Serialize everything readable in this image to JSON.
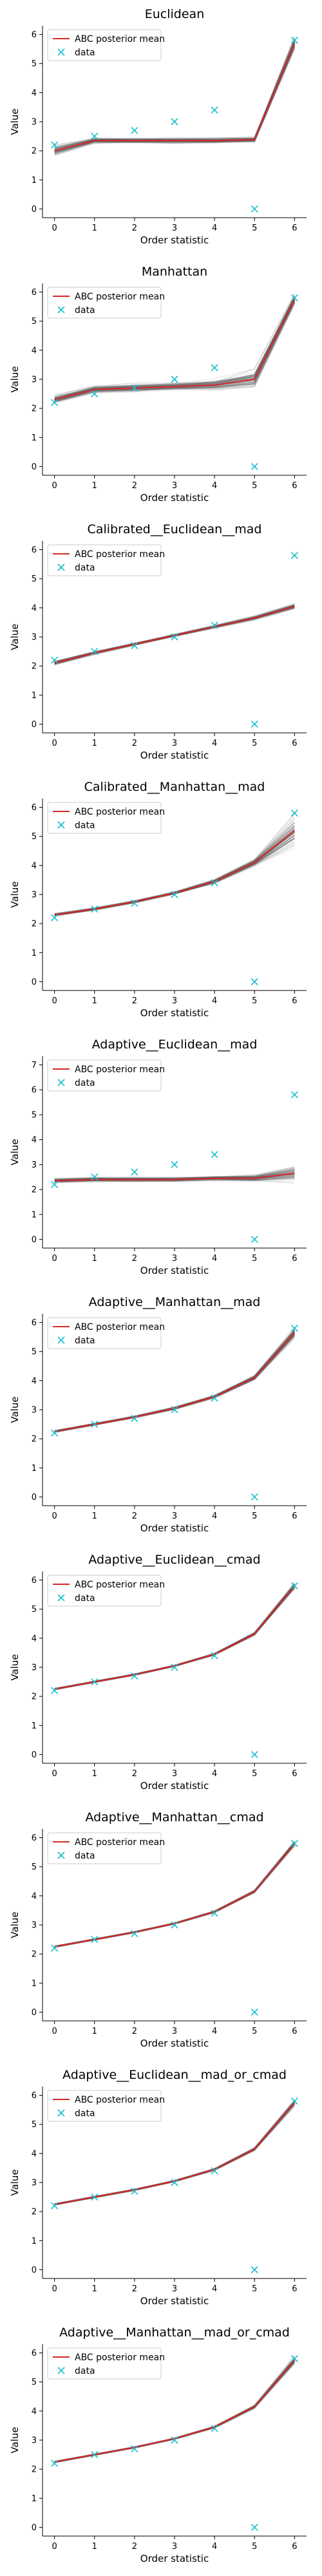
{
  "colors": {
    "mean_line": "#d62728",
    "sim_lines": "#808080",
    "data_marker": "#17becf",
    "axis": "#000000"
  },
  "legend": {
    "mean_label": "ABC posterior mean",
    "data_label": "data"
  },
  "chart_data": [
    {
      "type": "line",
      "title": "Euclidean",
      "xlabel": "Order statistic",
      "ylabel": "Value",
      "xlim": [
        0,
        6
      ],
      "ylim": [
        0,
        6
      ],
      "xticks": [
        0,
        1,
        2,
        3,
        4,
        5,
        6
      ],
      "yticks": [
        0,
        1,
        2,
        3,
        4,
        5,
        6
      ],
      "legend_position": "upper-left",
      "series": [
        {
          "name": "ABC posterior mean",
          "x": [
            0,
            1,
            2,
            3,
            4,
            5,
            6
          ],
          "values": [
            2.0,
            2.35,
            2.35,
            2.35,
            2.35,
            2.38,
            5.7
          ],
          "band": [
            0.18,
            0.1,
            0.1,
            0.1,
            0.1,
            0.1,
            0.25
          ]
        },
        {
          "name": "data",
          "x": [
            0,
            1,
            2,
            3,
            4,
            5,
            6
          ],
          "values": [
            2.2,
            2.5,
            2.7,
            3.0,
            3.4,
            0.0,
            5.8
          ]
        }
      ]
    },
    {
      "type": "line",
      "title": "Manhattan",
      "xlabel": "Order statistic",
      "ylabel": "Value",
      "xlim": [
        0,
        6
      ],
      "ylim": [
        0,
        6
      ],
      "xticks": [
        0,
        1,
        2,
        3,
        4,
        5,
        6
      ],
      "yticks": [
        0,
        1,
        2,
        3,
        4,
        5,
        6
      ],
      "legend_position": "upper-left",
      "series": [
        {
          "name": "ABC posterior mean",
          "x": [
            0,
            1,
            2,
            3,
            4,
            5,
            6
          ],
          "values": [
            2.3,
            2.65,
            2.7,
            2.75,
            2.8,
            3.0,
            5.75
          ],
          "band": [
            0.15,
            0.15,
            0.15,
            0.15,
            0.2,
            0.35,
            0.2
          ]
        },
        {
          "name": "data",
          "x": [
            0,
            1,
            2,
            3,
            4,
            5,
            6
          ],
          "values": [
            2.2,
            2.5,
            2.7,
            3.0,
            3.4,
            0.0,
            5.8
          ]
        }
      ]
    },
    {
      "type": "line",
      "title": "Calibrated__Euclidean__mad",
      "xlabel": "Order statistic",
      "ylabel": "Value",
      "xlim": [
        0,
        6
      ],
      "ylim": [
        0,
        6
      ],
      "xticks": [
        0,
        1,
        2,
        3,
        4,
        5,
        6
      ],
      "yticks": [
        0,
        1,
        2,
        3,
        4,
        5,
        6
      ],
      "legend_position": "upper-left",
      "series": [
        {
          "name": "ABC posterior mean",
          "x": [
            0,
            1,
            2,
            3,
            4,
            5,
            6
          ],
          "values": [
            2.1,
            2.45,
            2.75,
            3.05,
            3.35,
            3.65,
            4.05
          ],
          "band": [
            0.08,
            0.06,
            0.05,
            0.05,
            0.06,
            0.08,
            0.1
          ]
        },
        {
          "name": "data",
          "x": [
            0,
            1,
            2,
            3,
            4,
            5,
            6
          ],
          "values": [
            2.2,
            2.5,
            2.7,
            3.0,
            3.4,
            0.0,
            5.8
          ]
        }
      ]
    },
    {
      "type": "line",
      "title": "Calibrated__Manhattan__mad",
      "xlabel": "Order statistic",
      "ylabel": "Value",
      "xlim": [
        0,
        6
      ],
      "ylim": [
        0,
        6
      ],
      "xticks": [
        0,
        1,
        2,
        3,
        4,
        5,
        6
      ],
      "yticks": [
        0,
        1,
        2,
        3,
        4,
        5,
        6
      ],
      "legend_position": "upper-left",
      "series": [
        {
          "name": "ABC posterior mean",
          "x": [
            0,
            1,
            2,
            3,
            4,
            5,
            6
          ],
          "values": [
            2.3,
            2.5,
            2.75,
            3.05,
            3.45,
            4.1,
            5.2
          ],
          "band": [
            0.05,
            0.05,
            0.05,
            0.05,
            0.08,
            0.15,
            0.6
          ]
        },
        {
          "name": "data",
          "x": [
            0,
            1,
            2,
            3,
            4,
            5,
            6
          ],
          "values": [
            2.2,
            2.5,
            2.7,
            3.0,
            3.4,
            0.0,
            5.8
          ]
        }
      ]
    },
    {
      "type": "line",
      "title": "Adaptive__Euclidean__mad",
      "xlabel": "Order statistic",
      "ylabel": "Value",
      "xlim": [
        0,
        6
      ],
      "ylim": [
        0,
        7
      ],
      "xticks": [
        0,
        1,
        2,
        3,
        4,
        5,
        6
      ],
      "yticks": [
        0,
        1,
        2,
        3,
        4,
        5,
        6,
        7
      ],
      "legend_position": "upper-left",
      "series": [
        {
          "name": "ABC posterior mean",
          "x": [
            0,
            1,
            2,
            3,
            4,
            5,
            6
          ],
          "values": [
            2.35,
            2.4,
            2.4,
            2.4,
            2.45,
            2.45,
            2.65
          ],
          "band": [
            0.1,
            0.1,
            0.1,
            0.1,
            0.1,
            0.15,
            0.35
          ]
        },
        {
          "name": "data",
          "x": [
            0,
            1,
            2,
            3,
            4,
            5,
            6
          ],
          "values": [
            2.2,
            2.5,
            2.7,
            3.0,
            3.4,
            0.0,
            5.8
          ]
        }
      ]
    },
    {
      "type": "line",
      "title": "Adaptive__Manhattan__mad",
      "xlabel": "Order statistic",
      "ylabel": "Value",
      "xlim": [
        0,
        6
      ],
      "ylim": [
        0,
        6
      ],
      "xticks": [
        0,
        1,
        2,
        3,
        4,
        5,
        6
      ],
      "yticks": [
        0,
        1,
        2,
        3,
        4,
        5,
        6
      ],
      "legend_position": "upper-left",
      "series": [
        {
          "name": "ABC posterior mean",
          "x": [
            0,
            1,
            2,
            3,
            4,
            5,
            6
          ],
          "values": [
            2.25,
            2.5,
            2.75,
            3.05,
            3.45,
            4.1,
            5.65
          ],
          "band": [
            0.04,
            0.04,
            0.04,
            0.05,
            0.06,
            0.1,
            0.2
          ]
        },
        {
          "name": "data",
          "x": [
            0,
            1,
            2,
            3,
            4,
            5,
            6
          ],
          "values": [
            2.2,
            2.5,
            2.7,
            3.0,
            3.4,
            0.0,
            5.8
          ]
        }
      ]
    },
    {
      "type": "line",
      "title": "Adaptive__Euclidean__cmad",
      "xlabel": "Order statistic",
      "ylabel": "Value",
      "xlim": [
        0,
        6
      ],
      "ylim": [
        0,
        6
      ],
      "xticks": [
        0,
        1,
        2,
        3,
        4,
        5,
        6
      ],
      "yticks": [
        0,
        1,
        2,
        3,
        4,
        5,
        6
      ],
      "legend_position": "upper-left",
      "series": [
        {
          "name": "ABC posterior mean",
          "x": [
            0,
            1,
            2,
            3,
            4,
            5,
            6
          ],
          "values": [
            2.25,
            2.5,
            2.75,
            3.05,
            3.45,
            4.15,
            5.8
          ],
          "band": [
            0.03,
            0.03,
            0.03,
            0.03,
            0.04,
            0.06,
            0.12
          ]
        },
        {
          "name": "data",
          "x": [
            0,
            1,
            2,
            3,
            4,
            5,
            6
          ],
          "values": [
            2.2,
            2.5,
            2.7,
            3.0,
            3.4,
            0.0,
            5.8
          ]
        }
      ]
    },
    {
      "type": "line",
      "title": "Adaptive__Manhattan__cmad",
      "xlabel": "Order statistic",
      "ylabel": "Value",
      "xlim": [
        0,
        6
      ],
      "ylim": [
        0,
        6
      ],
      "xticks": [
        0,
        1,
        2,
        3,
        4,
        5,
        6
      ],
      "yticks": [
        0,
        1,
        2,
        3,
        4,
        5,
        6
      ],
      "legend_position": "upper-left",
      "series": [
        {
          "name": "ABC posterior mean",
          "x": [
            0,
            1,
            2,
            3,
            4,
            5,
            6
          ],
          "values": [
            2.25,
            2.5,
            2.75,
            3.05,
            3.45,
            4.15,
            5.8
          ],
          "band": [
            0.03,
            0.03,
            0.03,
            0.03,
            0.04,
            0.06,
            0.12
          ]
        },
        {
          "name": "data",
          "x": [
            0,
            1,
            2,
            3,
            4,
            5,
            6
          ],
          "values": [
            2.2,
            2.5,
            2.7,
            3.0,
            3.4,
            0.0,
            5.8
          ]
        }
      ]
    },
    {
      "type": "line",
      "title": "Adaptive__Euclidean__mad_or_cmad",
      "xlabel": "Order statistic",
      "ylabel": "Value",
      "xlim": [
        0,
        6
      ],
      "ylim": [
        0,
        6
      ],
      "xticks": [
        0,
        1,
        2,
        3,
        4,
        5,
        6
      ],
      "yticks": [
        0,
        1,
        2,
        3,
        4,
        5,
        6
      ],
      "legend_position": "upper-left",
      "series": [
        {
          "name": "ABC posterior mean",
          "x": [
            0,
            1,
            2,
            3,
            4,
            5,
            6
          ],
          "values": [
            2.25,
            2.5,
            2.75,
            3.05,
            3.45,
            4.15,
            5.75
          ],
          "band": [
            0.03,
            0.03,
            0.03,
            0.03,
            0.04,
            0.06,
            0.12
          ]
        },
        {
          "name": "data",
          "x": [
            0,
            1,
            2,
            3,
            4,
            5,
            6
          ],
          "values": [
            2.2,
            2.5,
            2.7,
            3.0,
            3.4,
            0.0,
            5.8
          ]
        }
      ]
    },
    {
      "type": "line",
      "title": "Adaptive__Manhattan__mad_or_cmad",
      "xlabel": "Order statistic",
      "ylabel": "Value",
      "xlim": [
        0,
        6
      ],
      "ylim": [
        0,
        6
      ],
      "xticks": [
        0,
        1,
        2,
        3,
        4,
        5,
        6
      ],
      "yticks": [
        0,
        1,
        2,
        3,
        4,
        5,
        6
      ],
      "legend_position": "upper-left",
      "series": [
        {
          "name": "ABC posterior mean",
          "x": [
            0,
            1,
            2,
            3,
            4,
            5,
            6
          ],
          "values": [
            2.25,
            2.5,
            2.75,
            3.05,
            3.45,
            4.15,
            5.75
          ],
          "band": [
            0.03,
            0.03,
            0.03,
            0.03,
            0.04,
            0.06,
            0.15
          ]
        },
        {
          "name": "data",
          "x": [
            0,
            1,
            2,
            3,
            4,
            5,
            6
          ],
          "values": [
            2.2,
            2.5,
            2.7,
            3.0,
            3.4,
            0.0,
            5.8
          ]
        }
      ]
    }
  ]
}
